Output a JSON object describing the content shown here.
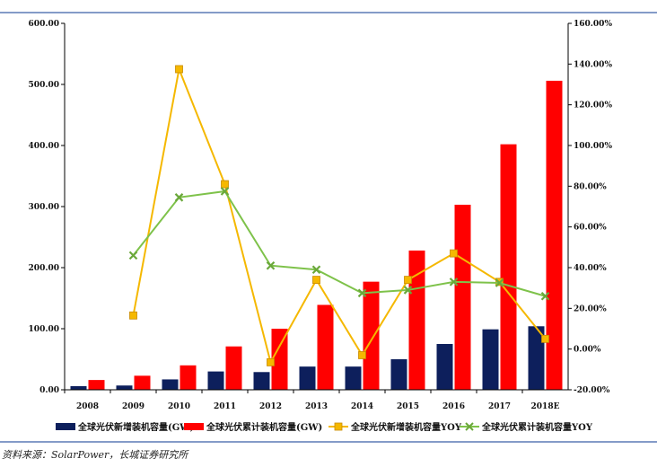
{
  "chart_data": {
    "type": "bar",
    "categories": [
      "2008",
      "2009",
      "2010",
      "2011",
      "2012",
      "2013",
      "2014",
      "2015",
      "2016",
      "2017",
      "2018E"
    ],
    "series": [
      {
        "name": "全球光伏新增装机容量(GW)",
        "type": "bar",
        "axis": "left",
        "color": "#0d1f5c",
        "values": [
          6,
          7,
          17,
          30,
          29,
          38,
          38,
          50,
          75,
          99,
          104
        ]
      },
      {
        "name": "全球光伏累计装机容量(GW)",
        "type": "bar",
        "axis": "left",
        "color": "#ff0000",
        "values": [
          16,
          23,
          40,
          71,
          100,
          139,
          177,
          228,
          303,
          402,
          506
        ]
      },
      {
        "name": "全球光伏新增装机容量YOY",
        "type": "line",
        "axis": "right",
        "color": "#f5b800",
        "marker": "square",
        "values": [
          null,
          16.5,
          137.5,
          81.0,
          -6.5,
          34.0,
          -3.0,
          34.0,
          47.0,
          33.0,
          5.0
        ]
      },
      {
        "name": "全球光伏累计装机容量YOY",
        "type": "line",
        "axis": "right",
        "color": "#7ec24a",
        "marker": "x",
        "values": [
          null,
          46.0,
          74.5,
          77.5,
          41.0,
          39.0,
          27.5,
          29.0,
          33.0,
          32.5,
          26.0
        ]
      }
    ],
    "y_left": {
      "ylim": [
        0,
        600
      ],
      "ticks": [
        "0.00",
        "100.00",
        "200.00",
        "300.00",
        "400.00",
        "500.00",
        "600.00"
      ]
    },
    "y_right": {
      "ylim": [
        -20,
        160
      ],
      "ticks": [
        "-20.00%",
        "0.00%",
        "20.00%",
        "40.00%",
        "60.00%",
        "80.00%",
        "100.00%",
        "120.00%",
        "140.00%",
        "160.00%"
      ]
    },
    "grid": false,
    "legend_position": "bottom",
    "source": "资料来源：SolarPower，长城证券研究所"
  }
}
